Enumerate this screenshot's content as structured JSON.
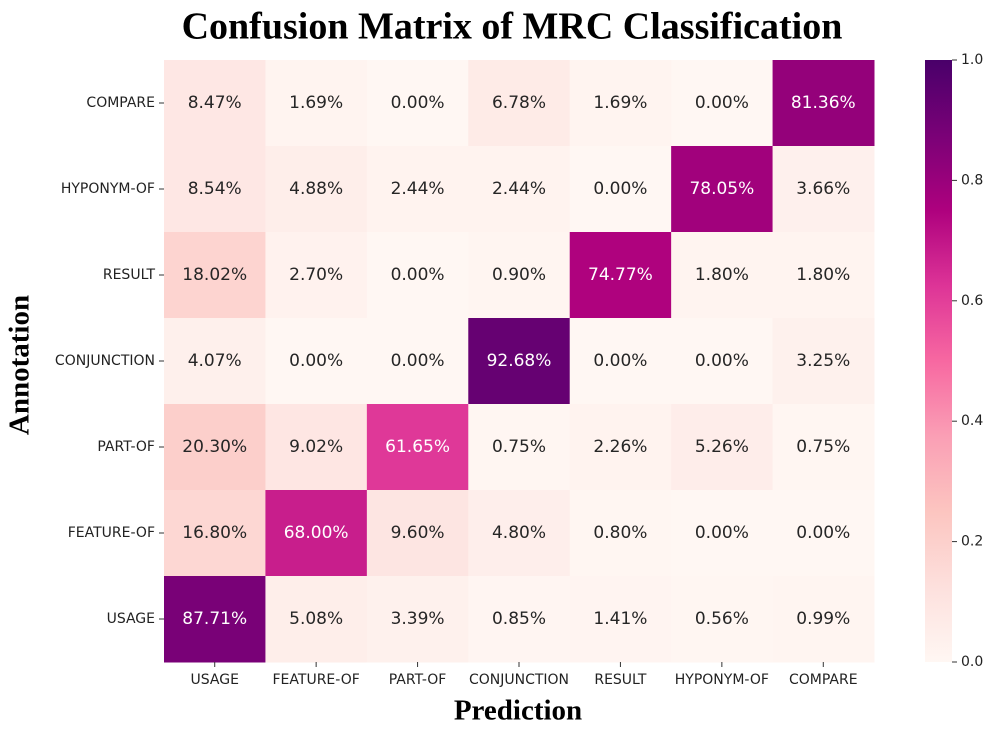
{
  "chart_data": {
    "type": "heatmap",
    "title": "Confusion Matrix of MRC Classification",
    "xlabel": "Prediction",
    "ylabel": "Annotation",
    "x_categories": [
      "USAGE",
      "FEATURE-OF",
      "PART-OF",
      "CONJUNCTION",
      "RESULT",
      "HYPONYM-OF",
      "COMPARE"
    ],
    "y_categories": [
      "COMPARE",
      "HYPONYM-OF",
      "RESULT",
      "CONJUNCTION",
      "PART-OF",
      "FEATURE-OF",
      "USAGE"
    ],
    "values": [
      [
        0.0847,
        0.0169,
        0,
        0.0678,
        0.0169,
        0,
        0.8136
      ],
      [
        0.0854,
        0.0488,
        0.0244,
        0.0244,
        0,
        0.7805,
        0.0366
      ],
      [
        0.1802,
        0.027,
        0,
        0.009,
        0.7477,
        0.018,
        0.018
      ],
      [
        0.0407,
        0,
        0,
        0.9268,
        0,
        0,
        0.0325
      ],
      [
        0.203,
        0.0902,
        0.6165,
        0.0075,
        0.0226,
        0.0526,
        0.0075
      ],
      [
        0.168,
        0.68,
        0.096,
        0.048,
        0.008,
        0,
        0
      ],
      [
        0.8771,
        0.0508,
        0.0339,
        0.0085,
        0.0141,
        0.0056,
        0.0099
      ]
    ],
    "value_labels": [
      [
        "8.47%",
        "1.69%",
        "0.00%",
        "6.78%",
        "1.69%",
        "0.00%",
        "81.36%"
      ],
      [
        "8.54%",
        "4.88%",
        "2.44%",
        "2.44%",
        "0.00%",
        "78.05%",
        "3.66%"
      ],
      [
        "18.02%",
        "2.70%",
        "0.00%",
        "0.90%",
        "74.77%",
        "1.80%",
        "1.80%"
      ],
      [
        "4.07%",
        "0.00%",
        "0.00%",
        "92.68%",
        "0.00%",
        "0.00%",
        "3.25%"
      ],
      [
        "20.30%",
        "9.02%",
        "61.65%",
        "0.75%",
        "2.26%",
        "5.26%",
        "0.75%"
      ],
      [
        "16.80%",
        "68.00%",
        "9.60%",
        "4.80%",
        "0.80%",
        "0.00%",
        "0.00%"
      ],
      [
        "87.71%",
        "5.08%",
        "3.39%",
        "0.85%",
        "1.41%",
        "0.56%",
        "0.99%"
      ]
    ],
    "clim": [
      0,
      1
    ],
    "cticks": [
      {
        "value": 0,
        "label": "0.0"
      },
      0.2,
      0.4,
      0.6,
      0.8,
      {
        "value": 1,
        "label": "1.0"
      }
    ],
    "colorscale": [
      "#fff7f3",
      "#fde0dd",
      "#fcc5c0",
      "#fa9fb5",
      "#f768a1",
      "#dd3497",
      "#ae017e",
      "#7a0177",
      "#49006a"
    ]
  }
}
